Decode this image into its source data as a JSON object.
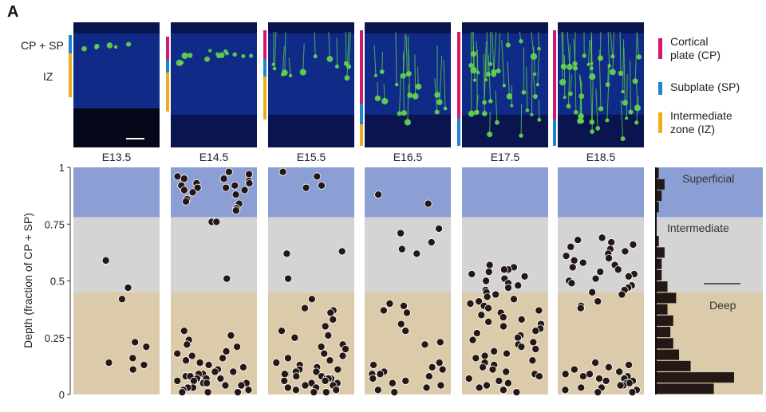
{
  "panel_letter": "A",
  "image_labels": {
    "cp_sp": "CP + SP",
    "iz": "IZ"
  },
  "stages": [
    "E13.5",
    "E14.5",
    "E15.5",
    "E16.5",
    "E17.5",
    "E18.5"
  ],
  "legend": [
    {
      "line1": "Cortical",
      "line2": "plate (CP)",
      "color": "#d4166f"
    },
    {
      "line1": "Subplate (SP)",
      "line2": "",
      "color": "#1b86cf"
    },
    {
      "line1": "Intermediate",
      "line2": "zone (IZ)",
      "color": "#f2ac19"
    }
  ],
  "colors": {
    "superficial": "#8c9fd4",
    "intermediate": "#d4d4d4",
    "deep": "#dccbaa",
    "dot": "#231815",
    "tissue": "#102c8a",
    "neuron": "#66d84a"
  },
  "chart_data": {
    "type": "scatter",
    "ylabel": "Depth (fraction of CP + SP)",
    "ylim": [
      0,
      1
    ],
    "yticks": [
      "0",
      "0.25",
      "0.5",
      "0.75",
      "1"
    ],
    "zones": [
      {
        "name": "Superficial",
        "from": 0.78,
        "to": 1.0
      },
      {
        "name": "Intermediate",
        "from": 0.45,
        "to": 0.78
      },
      {
        "name": "Deep",
        "from": 0.0,
        "to": 0.45
      }
    ],
    "series": [
      {
        "name": "E13.5",
        "y": [
          0.59,
          0.47,
          0.42,
          0.23,
          0.21,
          0.16,
          0.14,
          0.13,
          0.11
        ]
      },
      {
        "name": "E14.5",
        "y": [
          0.98,
          0.97,
          0.96,
          0.95,
          0.95,
          0.94,
          0.93,
          0.93,
          0.92,
          0.92,
          0.91,
          0.91,
          0.9,
          0.9,
          0.89,
          0.88,
          0.86,
          0.85,
          0.84,
          0.82,
          0.81,
          0.76,
          0.76,
          0.51,
          0.28,
          0.26,
          0.24,
          0.22,
          0.21,
          0.19,
          0.18,
          0.17,
          0.16,
          0.15,
          0.14,
          0.13,
          0.12,
          0.11,
          0.1,
          0.1,
          0.09,
          0.09,
          0.08,
          0.08,
          0.08,
          0.07,
          0.07,
          0.07,
          0.06,
          0.06,
          0.05,
          0.05,
          0.05,
          0.04,
          0.04,
          0.03,
          0.03,
          0.02,
          0.02,
          0.01,
          0.01,
          0.01
        ]
      },
      {
        "name": "E15.5",
        "y": [
          0.98,
          0.96,
          0.92,
          0.91,
          0.63,
          0.62,
          0.51,
          0.42,
          0.38,
          0.37,
          0.36,
          0.33,
          0.3,
          0.28,
          0.26,
          0.25,
          0.22,
          0.21,
          0.2,
          0.18,
          0.17,
          0.16,
          0.15,
          0.14,
          0.13,
          0.12,
          0.11,
          0.11,
          0.1,
          0.1,
          0.09,
          0.09,
          0.08,
          0.08,
          0.07,
          0.07,
          0.07,
          0.06,
          0.06,
          0.05,
          0.05,
          0.04,
          0.04,
          0.03,
          0.03,
          0.02,
          0.02,
          0.01,
          0.01
        ]
      },
      {
        "name": "E16.5",
        "y": [
          0.88,
          0.84,
          0.73,
          0.71,
          0.67,
          0.64,
          0.62,
          0.4,
          0.39,
          0.37,
          0.36,
          0.31,
          0.28,
          0.23,
          0.22,
          0.14,
          0.13,
          0.12,
          0.11,
          0.1,
          0.09,
          0.09,
          0.08,
          0.07,
          0.06,
          0.05,
          0.04,
          0.03,
          0.02,
          0.01
        ]
      },
      {
        "name": "E17.5",
        "y": [
          0.57,
          0.56,
          0.55,
          0.55,
          0.54,
          0.53,
          0.52,
          0.51,
          0.5,
          0.49,
          0.48,
          0.47,
          0.46,
          0.45,
          0.44,
          0.43,
          0.42,
          0.41,
          0.4,
          0.39,
          0.38,
          0.37,
          0.36,
          0.35,
          0.34,
          0.33,
          0.32,
          0.31,
          0.3,
          0.29,
          0.28,
          0.27,
          0.26,
          0.25,
          0.24,
          0.23,
          0.22,
          0.21,
          0.2,
          0.19,
          0.18,
          0.17,
          0.16,
          0.15,
          0.14,
          0.13,
          0.12,
          0.11,
          0.1,
          0.09,
          0.08,
          0.07,
          0.06,
          0.05,
          0.04,
          0.03,
          0.02,
          0.01
        ]
      },
      {
        "name": "E18.5",
        "y": [
          0.69,
          0.68,
          0.67,
          0.66,
          0.65,
          0.64,
          0.63,
          0.62,
          0.61,
          0.6,
          0.59,
          0.58,
          0.57,
          0.56,
          0.55,
          0.54,
          0.53,
          0.52,
          0.51,
          0.5,
          0.49,
          0.48,
          0.47,
          0.46,
          0.45,
          0.44,
          0.41,
          0.39,
          0.38,
          0.14,
          0.13,
          0.12,
          0.11,
          0.1,
          0.09,
          0.09,
          0.08,
          0.08,
          0.07,
          0.07,
          0.06,
          0.06,
          0.05,
          0.05,
          0.04,
          0.04,
          0.03,
          0.03,
          0.02,
          0.02,
          0.01,
          0.01
        ]
      }
    ],
    "histogram": {
      "bin_width": 0.05,
      "counts": [
        20,
        27,
        12,
        8,
        6,
        5,
        6,
        4,
        7,
        4,
        2,
        2,
        3,
        1,
        0,
        0,
        1,
        2,
        3,
        1
      ]
    }
  }
}
